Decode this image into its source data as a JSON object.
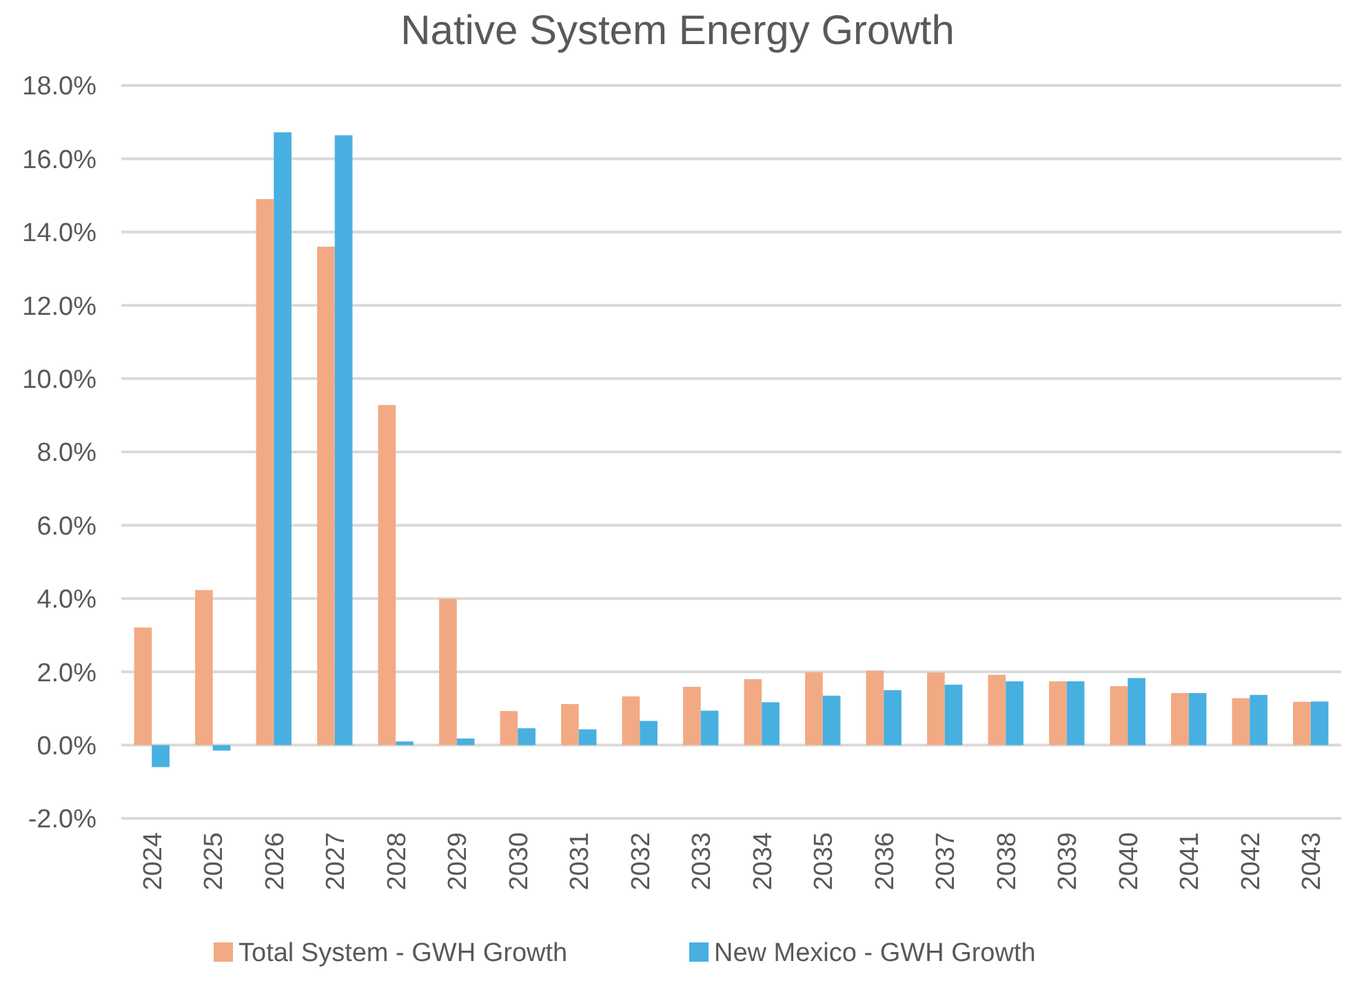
{
  "chart_data": {
    "type": "bar",
    "title": "Native System Energy Growth",
    "categories": [
      "2024",
      "2025",
      "2026",
      "2027",
      "2028",
      "2029",
      "2030",
      "2031",
      "2032",
      "2033",
      "2034",
      "2035",
      "2036",
      "2037",
      "2038",
      "2039",
      "2040",
      "2041",
      "2042",
      "2043"
    ],
    "series": [
      {
        "name": "Total System - GWH Growth",
        "color": "#f2aa84",
        "values": [
          3.21,
          4.23,
          14.9,
          13.6,
          9.28,
          3.99,
          0.93,
          1.12,
          1.33,
          1.59,
          1.8,
          1.99,
          2.03,
          1.98,
          1.92,
          1.74,
          1.61,
          1.42,
          1.28,
          1.18
        ]
      },
      {
        "name": "New Mexico - GWH Growth",
        "color": "#47b0e0",
        "values": [
          -0.6,
          -0.15,
          16.72,
          16.64,
          0.1,
          0.18,
          0.46,
          0.43,
          0.66,
          0.94,
          1.17,
          1.35,
          1.5,
          1.65,
          1.74,
          1.74,
          1.83,
          1.42,
          1.37,
          1.19
        ]
      }
    ],
    "ylim": [
      -2,
      18
    ],
    "yticks": [
      {
        "value": -2,
        "label": "-2.0%"
      },
      {
        "value": 0,
        "label": "0.0%"
      },
      {
        "value": 2,
        "label": "2.0%"
      },
      {
        "value": 4,
        "label": "4.0%"
      },
      {
        "value": 6,
        "label": "6.0%"
      },
      {
        "value": 8,
        "label": "8.0%"
      },
      {
        "value": 10,
        "label": "10.0%"
      },
      {
        "value": 12,
        "label": "12.0%"
      },
      {
        "value": 14,
        "label": "14.0%"
      },
      {
        "value": 16,
        "label": "16.0%"
      },
      {
        "value": 18,
        "label": "18.0%"
      }
    ],
    "grid": "y",
    "legend": "bottom"
  }
}
